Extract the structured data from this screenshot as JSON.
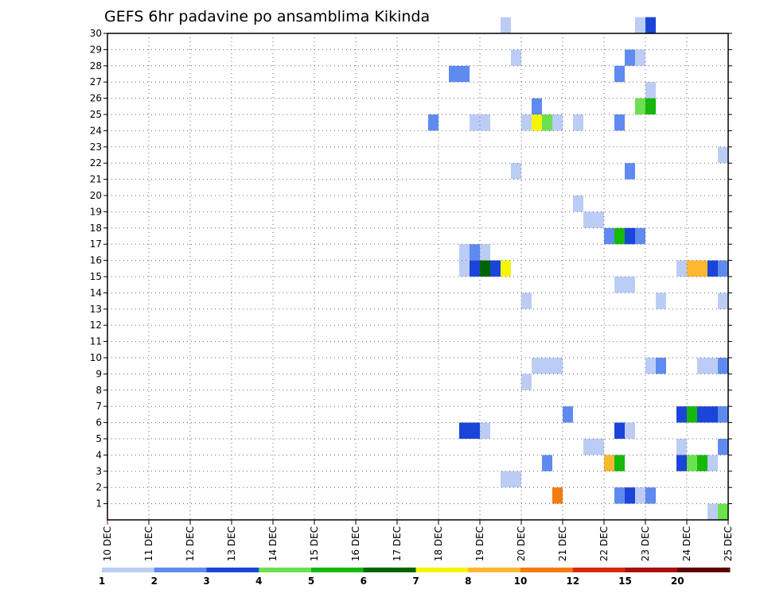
{
  "chart_data": {
    "type": "heatmap",
    "title": "GEFS 6hr padavine po ansamblima Kikinda",
    "xlabel": "",
    "ylabel": "",
    "x_ticks": [
      "10 DEC",
      "11 DEC",
      "12 DEC",
      "13 DEC",
      "14 DEC",
      "15 DEC",
      "16 DEC",
      "17 DEC",
      "18 DEC",
      "19 DEC",
      "20 DEC",
      "21 DEC",
      "22 DEC",
      "23 DEC",
      "24 DEC",
      "25 DEC"
    ],
    "y_ticks": [
      1,
      2,
      3,
      4,
      5,
      6,
      7,
      8,
      9,
      10,
      11,
      12,
      13,
      14,
      15,
      16,
      17,
      18,
      19,
      20,
      21,
      22,
      23,
      24,
      25,
      26,
      27,
      28,
      29,
      30
    ],
    "x_range": [
      0,
      60
    ],
    "y_range": [
      0,
      30
    ],
    "x_unit": "6-hour step from 10 DEC 00Z",
    "colorbar": {
      "ticks": [
        "1",
        "2",
        "3",
        "4",
        "5",
        "6",
        "7",
        "8",
        "10",
        "12",
        "15",
        "20"
      ],
      "colors": [
        "#bccdf5",
        "#5f8af0",
        "#1a45d8",
        "#6be14f",
        "#16b80c",
        "#006400",
        "#f5f500",
        "#fbb830",
        "#f47b12",
        "#d9280f",
        "#a90d0d",
        "#5e0000"
      ]
    },
    "cells": [
      {
        "x": 38,
        "y": 30,
        "c": 0
      },
      {
        "x": 51,
        "y": 30,
        "c": 0
      },
      {
        "x": 52,
        "y": 30,
        "c": 2
      },
      {
        "x": 39,
        "y": 28,
        "c": 0
      },
      {
        "x": 50,
        "y": 28,
        "c": 1
      },
      {
        "x": 51,
        "y": 28,
        "c": 0
      },
      {
        "x": 33,
        "y": 27,
        "c": 1
      },
      {
        "x": 34,
        "y": 27,
        "c": 1
      },
      {
        "x": 49,
        "y": 27,
        "c": 1
      },
      {
        "x": 52,
        "y": 26,
        "c": 0
      },
      {
        "x": 41,
        "y": 25,
        "c": 1
      },
      {
        "x": 51,
        "y": 25,
        "c": 3
      },
      {
        "x": 52,
        "y": 25,
        "c": 4
      },
      {
        "x": 31,
        "y": 24,
        "c": 1
      },
      {
        "x": 35,
        "y": 24,
        "c": 0
      },
      {
        "x": 36,
        "y": 24,
        "c": 0
      },
      {
        "x": 40,
        "y": 24,
        "c": 0
      },
      {
        "x": 41,
        "y": 24,
        "c": 6
      },
      {
        "x": 42,
        "y": 24,
        "c": 3
      },
      {
        "x": 43,
        "y": 24,
        "c": 0
      },
      {
        "x": 45,
        "y": 24,
        "c": 0
      },
      {
        "x": 49,
        "y": 24,
        "c": 1
      },
      {
        "x": 59,
        "y": 22,
        "c": 0
      },
      {
        "x": 39,
        "y": 21,
        "c": 0
      },
      {
        "x": 50,
        "y": 21,
        "c": 1
      },
      {
        "x": 45,
        "y": 19,
        "c": 0
      },
      {
        "x": 46,
        "y": 18,
        "c": 0
      },
      {
        "x": 47,
        "y": 18,
        "c": 0
      },
      {
        "x": 48,
        "y": 17,
        "c": 1
      },
      {
        "x": 49,
        "y": 17,
        "c": 4
      },
      {
        "x": 50,
        "y": 17,
        "c": 2
      },
      {
        "x": 51,
        "y": 17,
        "c": 1
      },
      {
        "x": 34,
        "y": 16,
        "c": 0
      },
      {
        "x": 35,
        "y": 16,
        "c": 1
      },
      {
        "x": 36,
        "y": 16,
        "c": 0
      },
      {
        "x": 34,
        "y": 15,
        "c": 0
      },
      {
        "x": 35,
        "y": 15,
        "c": 2
      },
      {
        "x": 36,
        "y": 15,
        "c": 5
      },
      {
        "x": 37,
        "y": 15,
        "c": 2
      },
      {
        "x": 38,
        "y": 15,
        "c": 6
      },
      {
        "x": 55,
        "y": 15,
        "c": 0
      },
      {
        "x": 56,
        "y": 15,
        "c": 7
      },
      {
        "x": 57,
        "y": 15,
        "c": 7
      },
      {
        "x": 58,
        "y": 15,
        "c": 2
      },
      {
        "x": 59,
        "y": 15,
        "c": 1
      },
      {
        "x": 49,
        "y": 14,
        "c": 0
      },
      {
        "x": 50,
        "y": 14,
        "c": 0
      },
      {
        "x": 40,
        "y": 13,
        "c": 0
      },
      {
        "x": 53,
        "y": 13,
        "c": 0
      },
      {
        "x": 59,
        "y": 13,
        "c": 0
      },
      {
        "x": 41,
        "y": 9,
        "c": 0
      },
      {
        "x": 42,
        "y": 9,
        "c": 0
      },
      {
        "x": 43,
        "y": 9,
        "c": 0
      },
      {
        "x": 52,
        "y": 9,
        "c": 0
      },
      {
        "x": 53,
        "y": 9,
        "c": 1
      },
      {
        "x": 57,
        "y": 9,
        "c": 0
      },
      {
        "x": 58,
        "y": 9,
        "c": 0
      },
      {
        "x": 59,
        "y": 9,
        "c": 1
      },
      {
        "x": 40,
        "y": 8,
        "c": 0
      },
      {
        "x": 44,
        "y": 6,
        "c": 1
      },
      {
        "x": 55,
        "y": 6,
        "c": 2
      },
      {
        "x": 56,
        "y": 6,
        "c": 4
      },
      {
        "x": 57,
        "y": 6,
        "c": 2
      },
      {
        "x": 58,
        "y": 6,
        "c": 2
      },
      {
        "x": 59,
        "y": 6,
        "c": 1
      },
      {
        "x": 34,
        "y": 5,
        "c": 2
      },
      {
        "x": 35,
        "y": 5,
        "c": 2
      },
      {
        "x": 36,
        "y": 5,
        "c": 0
      },
      {
        "x": 49,
        "y": 5,
        "c": 2
      },
      {
        "x": 50,
        "y": 5,
        "c": 0
      },
      {
        "x": 46,
        "y": 4,
        "c": 0
      },
      {
        "x": 47,
        "y": 4,
        "c": 0
      },
      {
        "x": 55,
        "y": 4,
        "c": 0
      },
      {
        "x": 59,
        "y": 4,
        "c": 1
      },
      {
        "x": 42,
        "y": 3,
        "c": 1
      },
      {
        "x": 48,
        "y": 3,
        "c": 7
      },
      {
        "x": 49,
        "y": 3,
        "c": 4
      },
      {
        "x": 55,
        "y": 3,
        "c": 2
      },
      {
        "x": 56,
        "y": 3,
        "c": 3
      },
      {
        "x": 57,
        "y": 3,
        "c": 4
      },
      {
        "x": 58,
        "y": 3,
        "c": 0
      },
      {
        "x": 38,
        "y": 2,
        "c": 0
      },
      {
        "x": 39,
        "y": 2,
        "c": 0
      },
      {
        "x": 43,
        "y": 1,
        "c": 8
      },
      {
        "x": 49,
        "y": 1,
        "c": 1
      },
      {
        "x": 50,
        "y": 1,
        "c": 2
      },
      {
        "x": 51,
        "y": 1,
        "c": 0
      },
      {
        "x": 52,
        "y": 1,
        "c": 1
      },
      {
        "x": 58,
        "y": 0,
        "c": 0
      },
      {
        "x": 59,
        "y": 0,
        "c": 3
      }
    ]
  }
}
